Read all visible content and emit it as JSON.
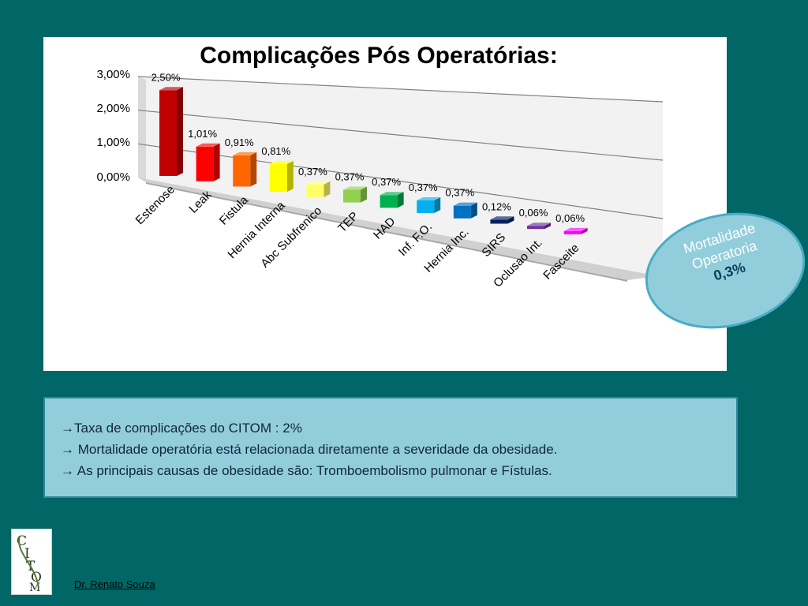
{
  "chart_data": {
    "type": "bar",
    "title": "Complicações Pós Operatórias:",
    "categories": [
      "Estenose",
      "Leak",
      "Fistula",
      "Hernia Interna",
      "Abc Subfrenico",
      "TEP",
      "HAD",
      "Inf. F.O.",
      "Hernia Inc.",
      "SIRS",
      "Oclusao Int.",
      "Fasceite"
    ],
    "values": [
      2.5,
      1.01,
      0.91,
      0.81,
      0.37,
      0.37,
      0.37,
      0.37,
      0.37,
      0.12,
      0.06,
      0.06
    ],
    "data_labels": [
      "2,50%",
      "1,01%",
      "0,91%",
      "0,81%",
      "0,37%",
      "0,37%",
      "0,37%",
      "0,37%",
      "0,37%",
      "0,12%",
      "0,06%",
      "0,06%"
    ],
    "colors": [
      "#c00000",
      "#ff0000",
      "#ff6600",
      "#ffff00",
      "#ffff66",
      "#92d050",
      "#00b050",
      "#00b0f0",
      "#0070c0",
      "#002060",
      "#7030a0",
      "#ff00ff"
    ],
    "y_ticks": [
      "3,00%",
      "2,00%",
      "1,00%",
      "0,00%"
    ],
    "ylim": [
      0,
      3
    ],
    "grid": true,
    "xlabel": "",
    "ylabel": ""
  },
  "callout": {
    "line1": "Mortalidade",
    "line2": "Operatoria",
    "line3": "0,3%",
    "fill": "#92cddc",
    "border": "#4aacc6"
  },
  "notes": {
    "line1": "Taxa de complicações do CITOM : 2%",
    "line2": " Mortalidade operatória está relacionada diretamente a severidade da obesidade.",
    "line3": " As principais causas de obesidade são: Tromboembolismo pulmonar e Fístulas.",
    "arrow": "→"
  },
  "logo": {
    "text": "CITOM"
  },
  "author": "Dr. Renato Souza",
  "colors": {
    "background": "#006666",
    "panel": "#ffffff",
    "notes_bg": "#92cddc"
  }
}
